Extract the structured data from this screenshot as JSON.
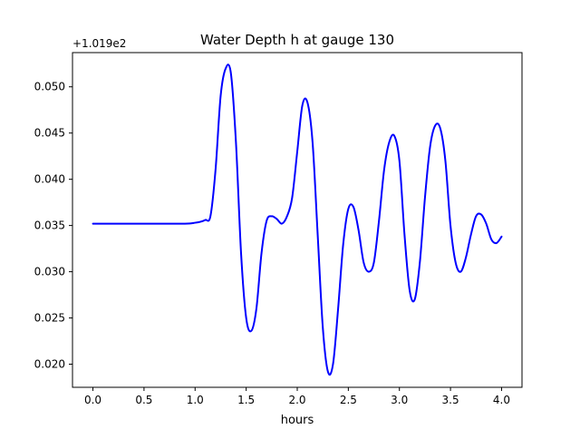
{
  "chart_data": {
    "type": "line",
    "title": "Water Depth h at gauge 130",
    "xlabel": "hours",
    "ylabel": "",
    "offset_label": "+1.019e2",
    "xlim": [
      -0.2,
      4.2
    ],
    "ylim": [
      0.0175,
      0.0537
    ],
    "x_ticks": [
      0.0,
      0.5,
      1.0,
      1.5,
      2.0,
      2.5,
      3.0,
      3.5,
      4.0
    ],
    "x_tick_labels": [
      "0.0",
      "0.5",
      "1.0",
      "1.5",
      "2.0",
      "2.5",
      "3.0",
      "3.5",
      "4.0"
    ],
    "y_ticks": [
      0.02,
      0.025,
      0.03,
      0.035,
      0.04,
      0.045,
      0.05
    ],
    "y_tick_labels": [
      "0.020",
      "0.025",
      "0.030",
      "0.035",
      "0.040",
      "0.045",
      "0.050"
    ],
    "grid": false,
    "line_color": "#0000ff",
    "series": [
      {
        "x": [
          0.0,
          0.5,
          0.9,
          1.0,
          1.05,
          1.1,
          1.15,
          1.2,
          1.25,
          1.3,
          1.35,
          1.4,
          1.45,
          1.5,
          1.55,
          1.6,
          1.65,
          1.7,
          1.75,
          1.8,
          1.85,
          1.9,
          1.95,
          2.0,
          2.05,
          2.1,
          2.15,
          2.2,
          2.25,
          2.3,
          2.35,
          2.4,
          2.45,
          2.5,
          2.55,
          2.6,
          2.65,
          2.7,
          2.75,
          2.8,
          2.85,
          2.9,
          2.95,
          3.0,
          3.05,
          3.1,
          3.15,
          3.2,
          3.25,
          3.3,
          3.35,
          3.4,
          3.45,
          3.5,
          3.55,
          3.6,
          3.65,
          3.7,
          3.75,
          3.8,
          3.85,
          3.9,
          3.95,
          4.0
        ],
        "y": [
          0.0352,
          0.0352,
          0.0352,
          0.0353,
          0.0354,
          0.0356,
          0.036,
          0.041,
          0.049,
          0.052,
          0.0515,
          0.044,
          0.032,
          0.025,
          0.0236,
          0.026,
          0.032,
          0.0355,
          0.036,
          0.0357,
          0.0352,
          0.036,
          0.038,
          0.043,
          0.048,
          0.0483,
          0.044,
          0.034,
          0.024,
          0.0192,
          0.02,
          0.026,
          0.033,
          0.0368,
          0.037,
          0.0345,
          0.031,
          0.03,
          0.031,
          0.0355,
          0.041,
          0.044,
          0.0447,
          0.042,
          0.034,
          0.028,
          0.027,
          0.031,
          0.038,
          0.0435,
          0.0458,
          0.0455,
          0.042,
          0.035,
          0.031,
          0.03,
          0.0315,
          0.034,
          0.036,
          0.0362,
          0.0352,
          0.0335,
          0.0331,
          0.0338
        ]
      }
    ]
  }
}
